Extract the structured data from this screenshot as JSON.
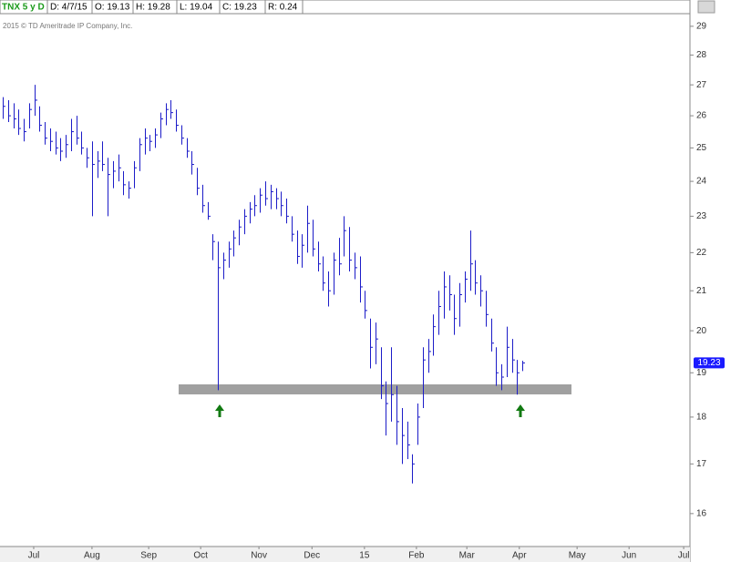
{
  "header": {
    "symbol": "TNX 5 y D",
    "date": "D: 4/7/15",
    "open": "O: 19.13",
    "high": "H: 19.28",
    "low": "L: 19.04",
    "close": "C: 19.23",
    "range": "R: 0.24"
  },
  "chart_data": {
    "type": "ohlc",
    "copyright": "2015 © TD Ameritrade IP Company, Inc.",
    "color": "#1c1cc8",
    "log_y": true,
    "ylim": [
      15.37,
      29.45
    ],
    "yticks": [
      16,
      17,
      18,
      19,
      20,
      21,
      22,
      23,
      24,
      25,
      26,
      27,
      28,
      29
    ],
    "xlim": [
      -0.52,
      130.9
    ],
    "xticks": [
      {
        "value": 5.9,
        "label": "Jul"
      },
      {
        "value": 17.0,
        "label": "Aug"
      },
      {
        "value": 27.8,
        "label": "Sep"
      },
      {
        "value": 37.7,
        "label": "Oct"
      },
      {
        "value": 48.8,
        "label": "Nov"
      },
      {
        "value": 58.9,
        "label": "Dec"
      },
      {
        "value": 68.9,
        "label": "15"
      },
      {
        "value": 78.8,
        "label": "Feb"
      },
      {
        "value": 88.4,
        "label": "Mar"
      },
      {
        "value": 98.4,
        "label": "Apr"
      },
      {
        "value": 109.4,
        "label": "May"
      },
      {
        "value": 119.3,
        "label": "Jun"
      },
      {
        "value": 129.7,
        "label": "Jul"
      }
    ],
    "last_label": "19.23",
    "high": [
      26.6,
      26.5,
      26.4,
      26.2,
      25.9,
      26.4,
      27.0,
      26.3,
      25.8,
      25.6,
      25.5,
      25.3,
      25.4,
      25.9,
      26.0,
      25.5,
      25.0,
      25.2,
      24.9,
      25.2,
      24.7,
      24.6,
      24.8,
      24.3,
      24.0,
      24.6,
      25.3,
      25.6,
      25.4,
      25.6,
      26.1,
      26.4,
      26.5,
      26.2,
      25.7,
      25.3,
      24.9,
      24.4,
      23.9,
      23.4,
      22.5,
      22.3,
      22.0,
      22.3,
      22.6,
      22.9,
      23.2,
      23.4,
      23.6,
      23.8,
      24.0,
      23.9,
      23.8,
      23.7,
      23.5,
      23.0,
      22.6,
      22.5,
      23.3,
      22.9,
      22.3,
      21.9,
      21.5,
      22.0,
      22.4,
      23.0,
      22.7,
      22.0,
      21.9,
      21.0,
      20.3,
      20.2,
      19.6,
      18.8,
      19.6,
      18.7,
      18.2,
      17.9,
      17.2,
      18.3,
      19.6,
      19.8,
      20.4,
      21.0,
      21.5,
      21.4,
      20.9,
      21.2,
      21.5,
      22.6,
      21.8,
      21.4,
      21.0,
      20.3,
      19.6,
      19.2,
      20.1,
      19.8,
      19.3,
      19.28
    ],
    "low": [
      25.9,
      25.8,
      25.6,
      25.4,
      25.2,
      25.6,
      26.0,
      25.5,
      25.1,
      24.9,
      24.8,
      24.6,
      24.7,
      24.9,
      25.1,
      24.8,
      24.4,
      23.0,
      24.1,
      24.3,
      23.0,
      23.8,
      24.0,
      23.6,
      23.5,
      23.8,
      24.3,
      24.8,
      24.9,
      25.0,
      25.3,
      25.7,
      25.9,
      25.5,
      25.1,
      24.7,
      24.2,
      23.6,
      23.1,
      22.9,
      21.8,
      18.6,
      21.3,
      21.6,
      21.9,
      22.2,
      22.5,
      22.8,
      23.0,
      23.1,
      23.3,
      23.2,
      23.2,
      23.0,
      22.8,
      22.3,
      21.7,
      21.6,
      22.0,
      21.9,
      21.5,
      21.0,
      20.6,
      20.9,
      21.4,
      21.9,
      21.5,
      21.3,
      20.7,
      20.3,
      19.1,
      19.2,
      18.4,
      17.6,
      17.9,
      17.4,
      17.0,
      17.1,
      16.6,
      17.4,
      18.2,
      19.0,
      19.4,
      19.9,
      20.3,
      20.5,
      19.9,
      20.1,
      20.7,
      21.0,
      20.9,
      20.6,
      20.1,
      19.5,
      18.7,
      18.6,
      18.9,
      19.0,
      18.5,
      19.04
    ],
    "close": [
      26.3,
      26.0,
      25.9,
      25.6,
      25.5,
      26.2,
      26.5,
      25.7,
      25.3,
      25.2,
      25.0,
      24.9,
      25.1,
      25.5,
      25.3,
      25.0,
      24.7,
      24.5,
      24.6,
      24.5,
      24.2,
      24.3,
      24.4,
      23.9,
      23.8,
      24.4,
      25.1,
      25.3,
      25.2,
      25.4,
      25.9,
      26.2,
      26.1,
      25.7,
      25.3,
      24.9,
      24.5,
      23.8,
      23.3,
      23.0,
      22.3,
      21.6,
      21.8,
      22.1,
      22.4,
      22.7,
      23.0,
      23.2,
      23.3,
      23.6,
      23.5,
      23.7,
      23.5,
      23.3,
      23.0,
      22.5,
      21.9,
      22.2,
      22.8,
      22.1,
      21.7,
      21.2,
      21.0,
      21.8,
      21.7,
      22.6,
      21.8,
      21.6,
      21.1,
      20.5,
      19.6,
      19.8,
      18.7,
      18.3,
      18.5,
      17.9,
      17.6,
      17.4,
      17.0,
      18.0,
      19.3,
      19.5,
      20.1,
      20.6,
      21.1,
      20.9,
      20.3,
      20.9,
      21.3,
      21.7,
      21.2,
      21.0,
      20.4,
      19.7,
      19.0,
      18.9,
      19.6,
      19.3,
      19.0,
      19.23
    ]
  }
}
